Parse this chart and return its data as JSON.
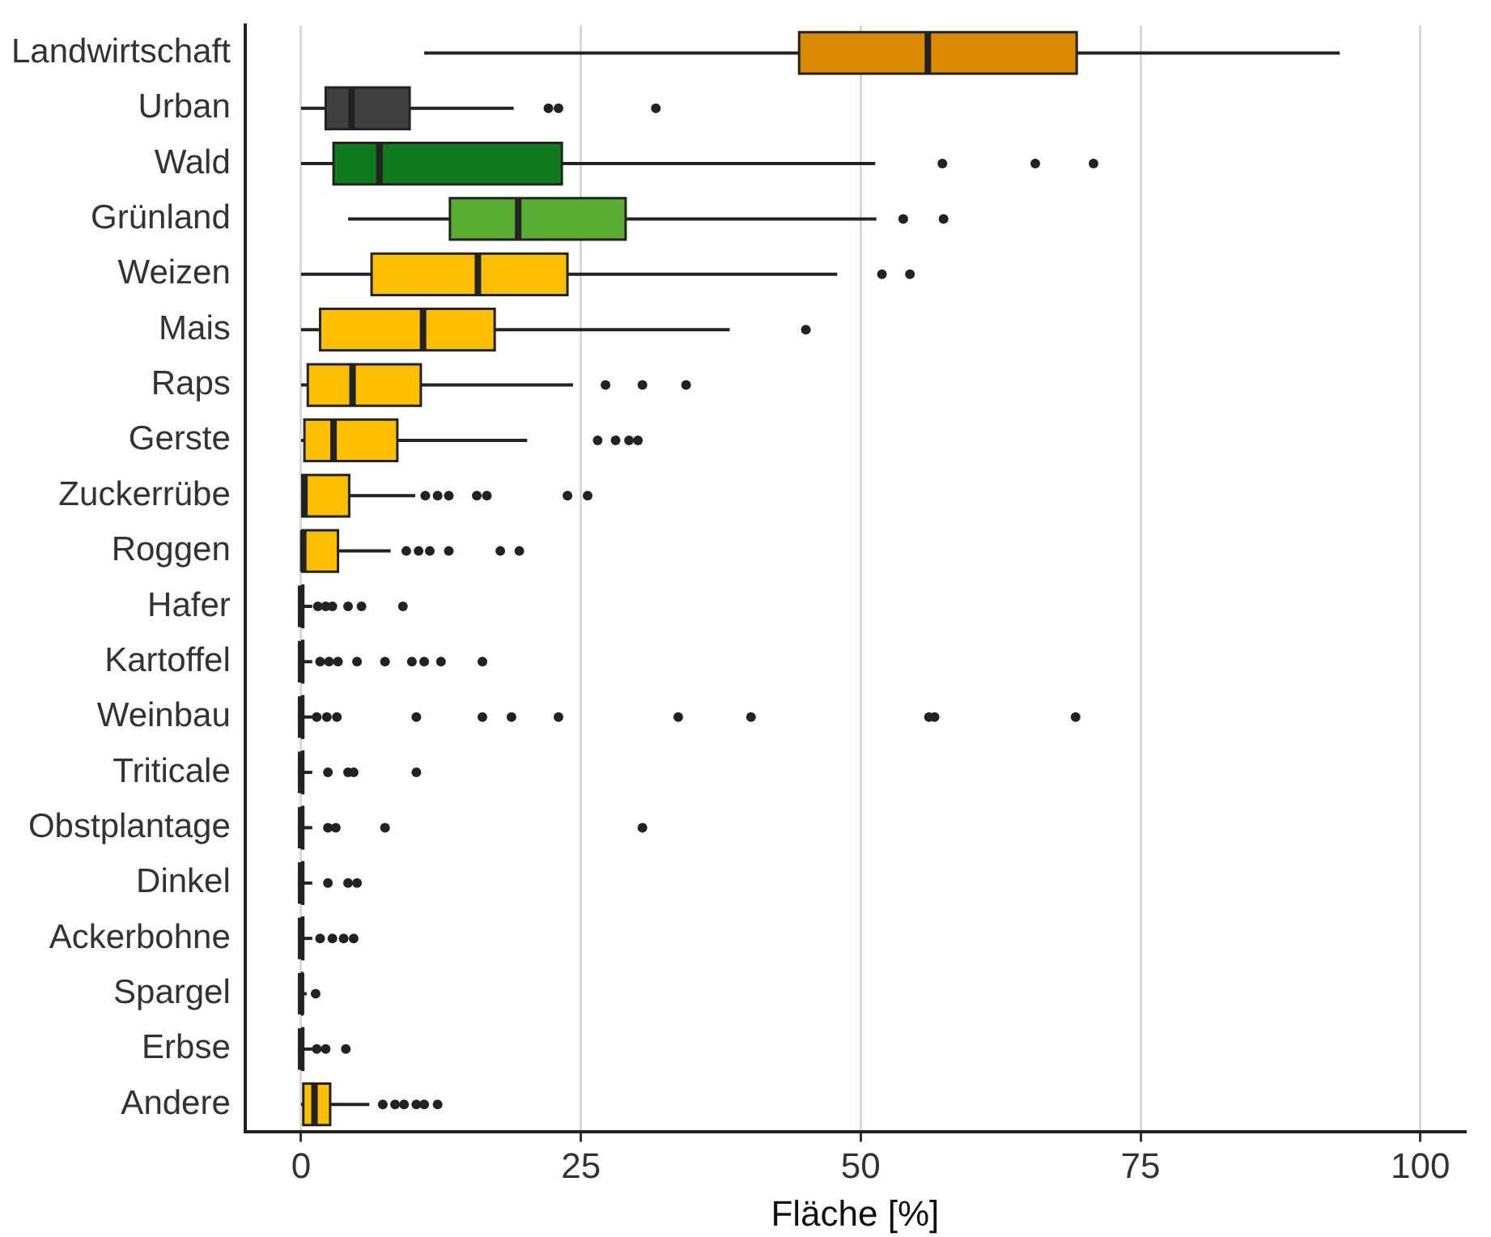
{
  "chart_data": {
    "type": "box",
    "orientation": "horizontal",
    "xlabel": "Fläche [%]",
    "categories": [
      "Landwirtschaft",
      "Urban",
      "Wald",
      "Grünland",
      "Weizen",
      "Mais",
      "Raps",
      "Gerste",
      "Zuckerrübe",
      "Roggen",
      "Hafer",
      "Kartoffel",
      "Weinbau",
      "Triticale",
      "Obstplantage",
      "Dinkel",
      "Ackerbohne",
      "Spargel",
      "Erbse",
      "Andere"
    ],
    "colors": [
      "#d98a00",
      "#404040",
      "#117a1e",
      "#5aac33",
      "#fdbf00",
      "#fdbf00",
      "#fdbf00",
      "#fdbf00",
      "#fdbf00",
      "#fdbf00",
      "#fdbf00",
      "#fdbf00",
      "#fdbf00",
      "#fdbf00",
      "#fdbf00",
      "#fdbf00",
      "#fdbf00",
      "#fdbf00",
      "#fdbf00",
      "#fdbf00"
    ],
    "boxes": [
      {
        "low": 11,
        "q1": 44.5,
        "median": 56,
        "q3": 69.3,
        "high": 92.8
      },
      {
        "low": 0,
        "q1": 2.2,
        "median": 4.5,
        "q3": 9.7,
        "high": 19,
        "outliers": [
          22.1,
          23,
          31.7
        ]
      },
      {
        "low": 0,
        "q1": 2.9,
        "median": 7,
        "q3": 23.3,
        "high": 51.3,
        "outliers": [
          57.3,
          65.6,
          70.8
        ]
      },
      {
        "low": 4.2,
        "q1": 13.3,
        "median": 19.4,
        "q3": 29,
        "high": 51.4,
        "outliers": [
          53.8,
          57.4
        ]
      },
      {
        "low": 0,
        "q1": 6.3,
        "median": 15.8,
        "q3": 23.8,
        "high": 47.9,
        "outliers": [
          51.9,
          54.4
        ]
      },
      {
        "low": 0,
        "q1": 1.7,
        "median": 10.9,
        "q3": 17.3,
        "high": 38.3,
        "outliers": [
          45.1
        ]
      },
      {
        "low": 0,
        "q1": 0.6,
        "median": 4.6,
        "q3": 10.7,
        "high": 24.3,
        "outliers": [
          27.2,
          30.5,
          34.4
        ]
      },
      {
        "low": 0,
        "q1": 0.3,
        "median": 2.9,
        "q3": 8.6,
        "high": 20.2,
        "outliers": [
          26.5,
          28.1,
          29.3,
          30.1
        ]
      },
      {
        "low": 0,
        "q1": 0,
        "median": 0.3,
        "q3": 4.3,
        "high": 10.2,
        "outliers": [
          11.1,
          12.2,
          13.2,
          15.7,
          16.6,
          23.8,
          25.6
        ]
      },
      {
        "low": 0,
        "q1": 0,
        "median": 0.2,
        "q3": 3.3,
        "high": 8,
        "outliers": [
          9.4,
          10.5,
          11.5,
          13.2,
          17.8,
          19.5
        ]
      },
      {
        "low": 0,
        "q1": 0,
        "median": 0,
        "q3": 0.2,
        "high": 1,
        "outliers": [
          1.5,
          2.2,
          2.8,
          4.2,
          5.4,
          9.1
        ]
      },
      {
        "low": 0,
        "q1": 0,
        "median": 0,
        "q3": 0.2,
        "high": 1,
        "outliers": [
          1.7,
          2.5,
          3.3,
          5,
          7.5,
          9.9,
          11,
          12.5,
          16.2
        ]
      },
      {
        "low": 0,
        "q1": 0,
        "median": 0,
        "q3": 0.2,
        "high": 1,
        "outliers": [
          1.4,
          2.3,
          3.2,
          10.3,
          16.2,
          18.8,
          23,
          33.7,
          40.2,
          56.1,
          56.6,
          69.2
        ]
      },
      {
        "low": 0,
        "q1": 0,
        "median": 0,
        "q3": 0.2,
        "high": 1,
        "outliers": [
          2.4,
          4.2,
          4.7,
          10.3
        ]
      },
      {
        "low": 0,
        "q1": 0,
        "median": 0,
        "q3": 0.2,
        "high": 1,
        "outliers": [
          2.4,
          3.1,
          7.5,
          30.5
        ]
      },
      {
        "low": 0,
        "q1": 0,
        "median": 0,
        "q3": 0.2,
        "high": 1,
        "outliers": [
          2.4,
          4.2,
          5
        ]
      },
      {
        "low": 0,
        "q1": 0,
        "median": 0,
        "q3": 0.2,
        "high": 1,
        "outliers": [
          1.7,
          2.8,
          3.8,
          4.7
        ]
      },
      {
        "low": 0,
        "q1": 0,
        "median": 0,
        "q3": 0.1,
        "high": 0.5,
        "outliers": [
          1.3
        ]
      },
      {
        "low": 0,
        "q1": 0,
        "median": 0,
        "q3": 0.2,
        "high": 1,
        "outliers": [
          1.4,
          2.2,
          4
        ]
      },
      {
        "low": 0,
        "q1": 0.2,
        "median": 1.2,
        "q3": 2.6,
        "high": 6.1,
        "outliers": [
          7.3,
          8.4,
          9.2,
          10.3,
          11,
          12.2
        ]
      }
    ],
    "xlim": [
      -5,
      104
    ],
    "xticks": [
      0,
      25,
      50,
      75,
      100
    ],
    "grid": "x",
    "legend": false
  }
}
